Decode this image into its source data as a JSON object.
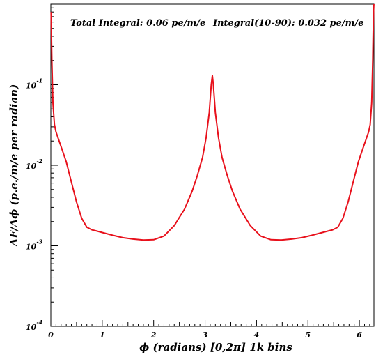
{
  "chart_data": {
    "type": "line",
    "annotations": {
      "total_integral": "Total Integral: 0.06 pe/m/e",
      "partial_integral": "Integral(10-90): 0.032 pe/m/e"
    },
    "xlabel": "ϕ (radians) [0,2π] 1k bins",
    "ylabel": "ΔF/Δϕ (p.e./m/e per radian)",
    "xlim": [
      0,
      6.283
    ],
    "ylim": [
      0.0001,
      1
    ],
    "yscale": "log",
    "grid": false,
    "x_ticks": [
      "0",
      "1",
      "2",
      "3",
      "4",
      "5",
      "6"
    ],
    "y_ticks": [
      {
        "base": "10",
        "exp": "-1"
      },
      {
        "base": "10",
        "exp": "-2"
      },
      {
        "base": "10",
        "exp": "-3"
      },
      {
        "base": "10",
        "exp": "-4"
      }
    ],
    "series": [
      {
        "color": "#e8101b",
        "x": [
          0.005,
          0.02,
          0.04,
          0.07,
          0.1,
          0.15,
          0.2,
          0.3,
          0.4,
          0.5,
          0.6,
          0.7,
          0.8,
          0.9,
          1.0,
          1.2,
          1.4,
          1.6,
          1.8,
          2.0,
          2.2,
          2.4,
          2.6,
          2.75,
          2.85,
          2.95,
          3.02,
          3.08,
          3.12,
          3.1416,
          3.16,
          3.2,
          3.26,
          3.33,
          3.43,
          3.53,
          3.68,
          3.88,
          4.08,
          4.28,
          4.48,
          4.68,
          4.88,
          5.08,
          5.28,
          5.48,
          5.58,
          5.68,
          5.78,
          5.88,
          5.98,
          6.08,
          6.13,
          6.18,
          6.21,
          6.24,
          6.26,
          6.275,
          6.282
        ],
        "y": [
          0.8,
          0.2,
          0.06,
          0.032,
          0.026,
          0.021,
          0.017,
          0.011,
          0.0062,
          0.0035,
          0.0022,
          0.0017,
          0.00158,
          0.00152,
          0.00146,
          0.00135,
          0.00126,
          0.00121,
          0.00118,
          0.00119,
          0.00132,
          0.00178,
          0.00285,
          0.0048,
          0.0075,
          0.0125,
          0.022,
          0.045,
          0.1,
          0.13,
          0.1,
          0.045,
          0.022,
          0.0125,
          0.0075,
          0.0048,
          0.00285,
          0.00178,
          0.00132,
          0.00119,
          0.00118,
          0.00121,
          0.00126,
          0.00135,
          0.00146,
          0.00158,
          0.0017,
          0.0022,
          0.0035,
          0.0062,
          0.011,
          0.017,
          0.021,
          0.026,
          0.032,
          0.06,
          0.2,
          0.8,
          1.0
        ]
      }
    ]
  }
}
